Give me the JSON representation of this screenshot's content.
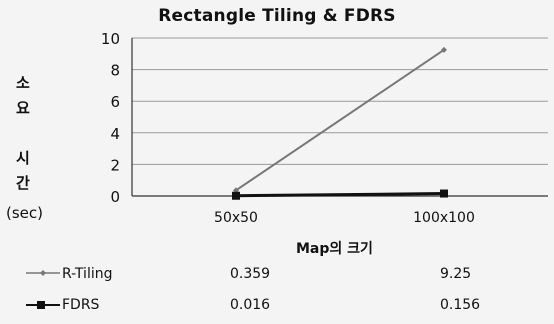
{
  "chart_data": {
    "type": "line",
    "title": "Rectangle Tiling & FDRS",
    "ylabel_chars": [
      "소",
      "요",
      "시",
      "간"
    ],
    "ylabel_unit": "(sec)",
    "xlabel": "Map의 크기",
    "categories": [
      "50x50",
      "100x100"
    ],
    "ylim": [
      0,
      10
    ],
    "yticks": [
      0,
      2,
      4,
      6,
      8,
      10
    ],
    "grid": true,
    "legend": "bottom data table",
    "series": [
      {
        "name": "R-Tiling",
        "values": [
          0.359,
          9.25
        ],
        "labels": [
          "0.359",
          "9.25"
        ],
        "color": "#777777",
        "marker": "small-diamond"
      },
      {
        "name": "FDRS",
        "values": [
          0.016,
          0.156
        ],
        "labels": [
          "0.016",
          "0.156"
        ],
        "color": "#111111",
        "marker": "square"
      }
    ]
  }
}
